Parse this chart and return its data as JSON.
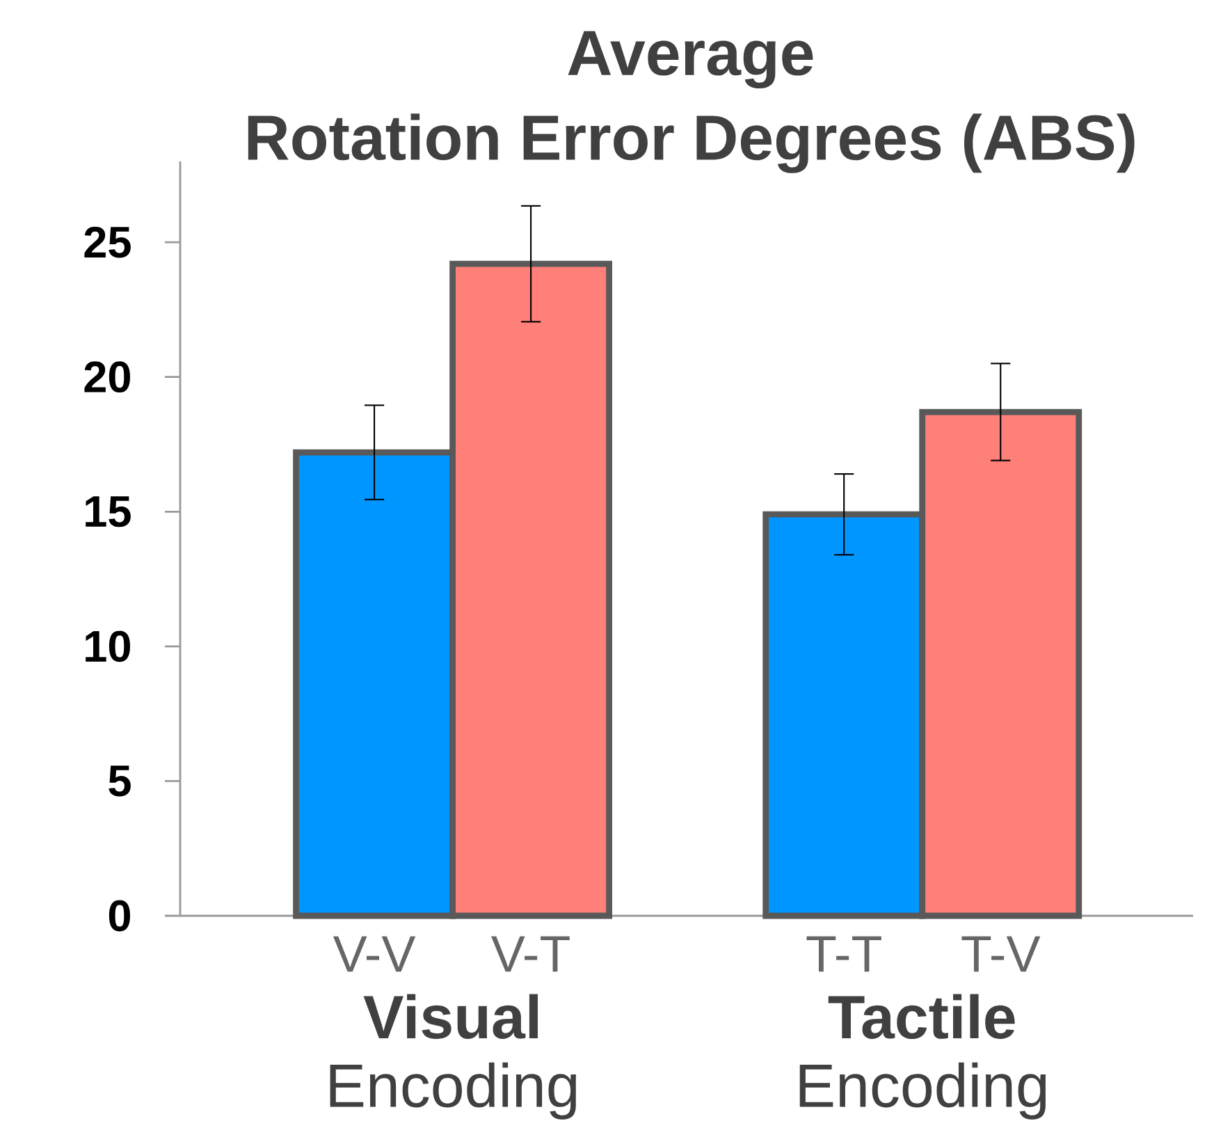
{
  "chart_data": {
    "type": "bar",
    "title": "Average",
    "subtitle": "Rotation Error Degrees (ABS)",
    "categories": [
      "V-V",
      "V-T",
      null,
      "T-T",
      "T-V"
    ],
    "values": [
      17.2,
      24.2,
      null,
      14.9,
      18.7
    ],
    "errors": [
      1.75,
      2.15,
      null,
      1.5,
      1.8
    ],
    "colors": [
      "#0096ff",
      "#ff7f79",
      null,
      "#0096ff",
      "#ff7f79"
    ],
    "ylim": [
      0,
      28
    ],
    "yticks": [
      0,
      5,
      10,
      15,
      20,
      25
    ],
    "annotations": [
      "**Visual** Encoding",
      "**Tactile** Encoding"
    ]
  }
}
